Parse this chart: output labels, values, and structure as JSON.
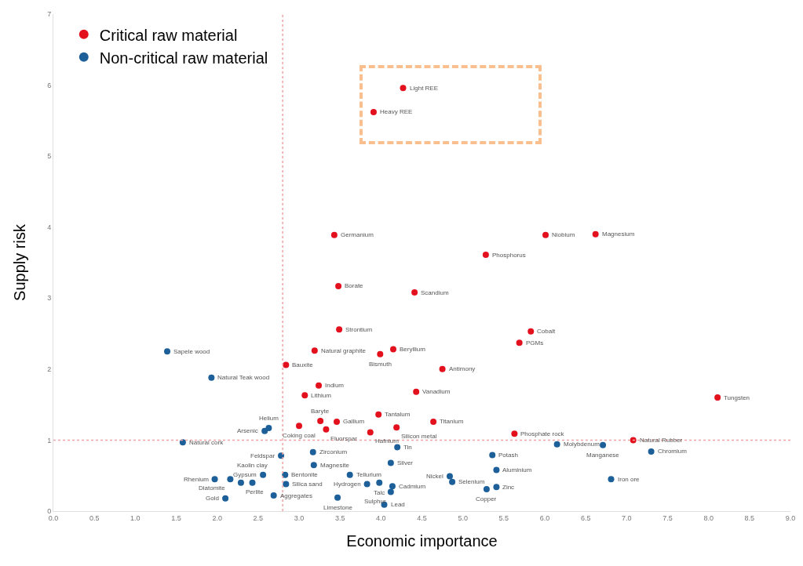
{
  "chart_data": {
    "type": "scatter",
    "xlabel": "Economic importance",
    "ylabel": "Supply risk",
    "xlim": [
      0,
      9
    ],
    "ylim": [
      0,
      7
    ],
    "xticks": [
      {
        "value": 0,
        "label": "0.0"
      },
      {
        "value": 0.5,
        "label": "0.5"
      },
      {
        "value": 1,
        "label": "1.0"
      },
      {
        "value": 1.5,
        "label": "1.5"
      },
      {
        "value": 2,
        "label": "2.0"
      },
      {
        "value": 2.5,
        "label": "2.5"
      },
      {
        "value": 3,
        "label": "3.0"
      },
      {
        "value": 3.5,
        "label": "3.5"
      },
      {
        "value": 4,
        "label": "4.0"
      },
      {
        "value": 4.5,
        "label": "4.5"
      },
      {
        "value": 5,
        "label": "5.0"
      },
      {
        "value": 5.5,
        "label": "5.5"
      },
      {
        "value": 6,
        "label": "6.0"
      },
      {
        "value": 6.5,
        "label": "6.5"
      },
      {
        "value": 7,
        "label": "7.0"
      },
      {
        "value": 7.5,
        "label": "7.5"
      },
      {
        "value": 8,
        "label": "8.0"
      },
      {
        "value": 8.5,
        "label": "8.5"
      },
      {
        "value": 9,
        "label": "9.0"
      }
    ],
    "yticks": [
      0,
      1,
      2,
      3,
      4,
      5,
      6,
      7
    ],
    "grid": false,
    "legend": "top left",
    "marker": "circle",
    "series": [
      {
        "name": "Critical raw material",
        "color": "#e3101e",
        "x": [
          3.43,
          3.48,
          3.49,
          3.19,
          3.99,
          4.15,
          4.41,
          4.75,
          4.43,
          6.01,
          6.62,
          5.28,
          5.83,
          5.69,
          2.84,
          3.24,
          3.07,
          3.0,
          3.26,
          3.46,
          3.33,
          3.87,
          3.97,
          4.19,
          4.64,
          5.63,
          7.08,
          8.11,
          4.27,
          3.91
        ],
        "values": [
          3.89,
          3.17,
          2.56,
          2.26,
          2.21,
          2.28,
          3.08,
          2.0,
          1.68,
          3.89,
          3.9,
          3.61,
          2.53,
          2.37,
          2.06,
          1.77,
          1.63,
          1.2,
          1.27,
          1.26,
          1.15,
          1.11,
          1.36,
          1.18,
          1.26,
          1.09,
          1.0,
          1.6,
          5.96,
          5.62
        ]
      },
      {
        "name": "Non-critical raw material",
        "color": "#1d5f99",
        "x": [
          1.39,
          1.93,
          1.58,
          2.63,
          2.58,
          2.78,
          3.17,
          3.18,
          2.83,
          2.56,
          2.16,
          2.29,
          2.43,
          1.97,
          2.1,
          2.69,
          2.84,
          3.62,
          3.98,
          3.83,
          3.47,
          4.04,
          4.14,
          4.12,
          4.12,
          4.2,
          4.84,
          4.87,
          5.36,
          5.41,
          5.41,
          5.29,
          6.15,
          6.71,
          7.3,
          6.81
        ],
        "values": [
          2.25,
          1.88,
          0.97,
          1.17,
          1.13,
          0.78,
          0.83,
          0.65,
          0.51,
          0.51,
          0.45,
          0.4,
          0.4,
          0.45,
          0.18,
          0.22,
          0.38,
          0.51,
          0.4,
          0.38,
          0.19,
          0.09,
          0.35,
          0.27,
          0.68,
          0.9,
          0.49,
          0.41,
          0.79,
          0.58,
          0.34,
          0.31,
          0.94,
          0.93,
          0.84,
          0.45
        ]
      }
    ],
    "ref_lines": [
      {
        "axis": "x",
        "value": 2.8,
        "color": "#f2a3a3",
        "line_style": "dotted"
      },
      {
        "axis": "y",
        "value": 1,
        "color": "#f2a3a3",
        "line_style": "dotted"
      }
    ],
    "annotations": [
      {
        "text": "Germanium",
        "x": 3.43,
        "y": 3.89
      },
      {
        "text": "Borate",
        "x": 3.48,
        "y": 3.17
      },
      {
        "text": "Strontium",
        "x": 3.49,
        "y": 2.56
      },
      {
        "text": "Natural graphite",
        "x": 3.19,
        "y": 2.26
      },
      {
        "text": "Bismuth",
        "x": 3.99,
        "y": 2.21
      },
      {
        "text": "Beryllium",
        "x": 4.15,
        "y": 2.28
      },
      {
        "text": "Scandium",
        "x": 4.41,
        "y": 3.08
      },
      {
        "text": "Antimony",
        "x": 4.75,
        "y": 2.0
      },
      {
        "text": "Vanadium",
        "x": 4.43,
        "y": 1.68
      },
      {
        "text": "Niobium",
        "x": 6.01,
        "y": 3.89
      },
      {
        "text": "Magnesium",
        "x": 6.62,
        "y": 3.9
      },
      {
        "text": "Phosphorus",
        "x": 5.28,
        "y": 3.61
      },
      {
        "text": "Cobalt",
        "x": 5.83,
        "y": 2.53
      },
      {
        "text": "PGMs",
        "x": 5.69,
        "y": 2.37
      },
      {
        "text": "Bauxite",
        "x": 2.84,
        "y": 2.06
      },
      {
        "text": "Indium",
        "x": 3.24,
        "y": 1.77
      },
      {
        "text": "Lithium",
        "x": 3.07,
        "y": 1.63
      },
      {
        "text": "Coking coal",
        "x": 3.0,
        "y": 1.2
      },
      {
        "text": "Baryte",
        "x": 3.26,
        "y": 1.27
      },
      {
        "text": "Gallium",
        "x": 3.46,
        "y": 1.26
      },
      {
        "text": "Fluorspar",
        "x": 3.33,
        "y": 1.15
      },
      {
        "text": "Hafnium",
        "x": 3.87,
        "y": 1.11
      },
      {
        "text": "Tantalum",
        "x": 3.97,
        "y": 1.36
      },
      {
        "text": "Silicon metal",
        "x": 4.19,
        "y": 1.18
      },
      {
        "text": "Titanium",
        "x": 4.64,
        "y": 1.26
      },
      {
        "text": "Phosphate rock",
        "x": 5.63,
        "y": 1.09
      },
      {
        "text": "Natural Rubber",
        "x": 7.08,
        "y": 1.0
      },
      {
        "text": "Tungsten",
        "x": 8.11,
        "y": 1.6
      },
      {
        "text": "Light REE",
        "x": 4.27,
        "y": 5.96
      },
      {
        "text": "Heavy REE",
        "x": 3.91,
        "y": 5.62
      },
      {
        "text": "Sapele wood",
        "x": 1.39,
        "y": 2.25
      },
      {
        "text": "Natural Teak wood",
        "x": 1.93,
        "y": 1.88
      },
      {
        "text": "Natural cork",
        "x": 1.58,
        "y": 0.97
      },
      {
        "text": "Helium",
        "x": 2.63,
        "y": 1.17
      },
      {
        "text": "Arsenic",
        "x": 2.58,
        "y": 1.13
      },
      {
        "text": "Feldspar",
        "x": 2.78,
        "y": 0.78
      },
      {
        "text": "Zirconium",
        "x": 3.17,
        "y": 0.83
      },
      {
        "text": "Magnesite",
        "x": 3.18,
        "y": 0.65
      },
      {
        "text": "Bentonite",
        "x": 2.83,
        "y": 0.51
      },
      {
        "text": "Gypsum",
        "x": 2.56,
        "y": 0.51
      },
      {
        "text": "Diatomite",
        "x": 2.16,
        "y": 0.45
      },
      {
        "text": "Perlite",
        "x": 2.29,
        "y": 0.4
      },
      {
        "text": "Kaolin clay",
        "x": 2.43,
        "y": 0.4
      },
      {
        "text": "Rhenium",
        "x": 1.97,
        "y": 0.45
      },
      {
        "text": "Gold",
        "x": 2.1,
        "y": 0.18
      },
      {
        "text": "Aggregates",
        "x": 2.69,
        "y": 0.22
      },
      {
        "text": "Silica sand",
        "x": 2.84,
        "y": 0.38
      },
      {
        "text": "Tellurium",
        "x": 3.62,
        "y": 0.51
      },
      {
        "text": "Talc",
        "x": 3.98,
        "y": 0.4
      },
      {
        "text": "Hydrogen",
        "x": 3.83,
        "y": 0.38
      },
      {
        "text": "Limestone",
        "x": 3.47,
        "y": 0.19
      },
      {
        "text": "Lead",
        "x": 4.04,
        "y": 0.09
      },
      {
        "text": "Cadmium",
        "x": 4.14,
        "y": 0.35
      },
      {
        "text": "Sulphur",
        "x": 4.12,
        "y": 0.27
      },
      {
        "text": "Silver",
        "x": 4.12,
        "y": 0.68
      },
      {
        "text": "Tin",
        "x": 4.2,
        "y": 0.9
      },
      {
        "text": "Nickel",
        "x": 4.84,
        "y": 0.49
      },
      {
        "text": "Selenium",
        "x": 4.87,
        "y": 0.41
      },
      {
        "text": "Potash",
        "x": 5.36,
        "y": 0.79
      },
      {
        "text": "Aluminium",
        "x": 5.41,
        "y": 0.58
      },
      {
        "text": "Zinc",
        "x": 5.41,
        "y": 0.34
      },
      {
        "text": "Copper",
        "x": 5.29,
        "y": 0.31
      },
      {
        "text": "Molybdenum",
        "x": 6.15,
        "y": 0.94
      },
      {
        "text": "Manganese",
        "x": 6.71,
        "y": 0.93
      },
      {
        "text": "Chromium",
        "x": 7.3,
        "y": 0.84
      },
      {
        "text": "Iron ore",
        "x": 6.81,
        "y": 0.45
      }
    ]
  }
}
